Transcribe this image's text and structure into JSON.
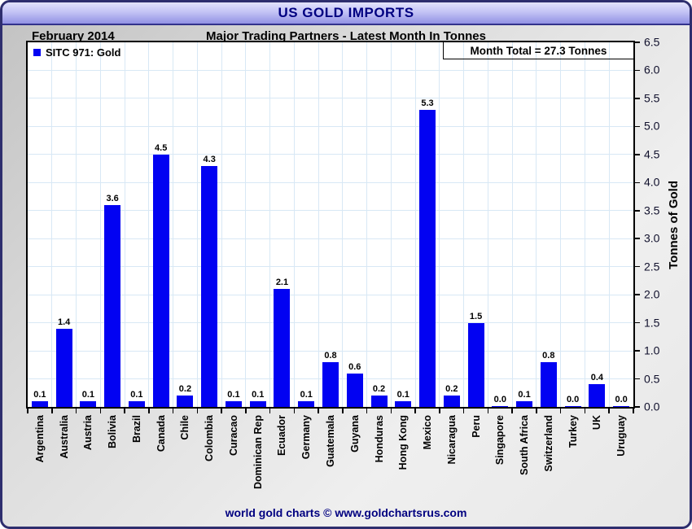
{
  "window": {
    "title": "US GOLD IMPORTS"
  },
  "header": {
    "date": "February 2014",
    "subtitle": "Major Trading Partners - Latest Month In Tonnes"
  },
  "legend": {
    "label": "SITC 971: Gold"
  },
  "annotation": {
    "month_total": "Month Total = 27.3 Tonnes"
  },
  "footer": {
    "credit": "world gold charts © www.goldchartsrus.com"
  },
  "colors": {
    "bar": "#0202f2",
    "grid": "#d8e8f5",
    "title_text": "#000080",
    "titlebar_top": "#e3e3fd",
    "titlebar_bottom": "#9292e4",
    "frame_border": "#2e2e6e"
  },
  "chart_data": {
    "type": "bar",
    "title": "US GOLD IMPORTS",
    "subtitle": "Major Trading Partners - Latest Month In Tonnes",
    "period": "February 2014",
    "series_name": "SITC 971: Gold",
    "month_total_tonnes": 27.3,
    "categories": [
      "Argentina",
      "Australia",
      "Austria",
      "Bolivia",
      "Brazil",
      "Canada",
      "Chile",
      "Colombia",
      "Curacao",
      "Dominican Rep",
      "Ecuador",
      "Germany",
      "Guatemala",
      "Guyana",
      "Honduras",
      "Hong Kong",
      "Mexico",
      "Nicaragua",
      "Peru",
      "Singapore",
      "South Africa",
      "Switzerland",
      "Turkey",
      "UK",
      "Uruguay"
    ],
    "values": [
      0.1,
      1.4,
      0.1,
      3.6,
      0.1,
      4.5,
      0.2,
      4.3,
      0.1,
      0.1,
      2.1,
      0.1,
      0.8,
      0.6,
      0.2,
      0.1,
      5.3,
      0.2,
      1.5,
      0.0,
      0.1,
      0.8,
      0.0,
      0.4,
      0.0
    ],
    "xlabel": "",
    "ylabel": "Tonnes of Gold",
    "ylim": [
      0,
      6.5
    ],
    "ytick_step": 0.5,
    "grid": true,
    "bar_labels": true,
    "legend_position": "top-left",
    "yaxis_side": "right"
  }
}
